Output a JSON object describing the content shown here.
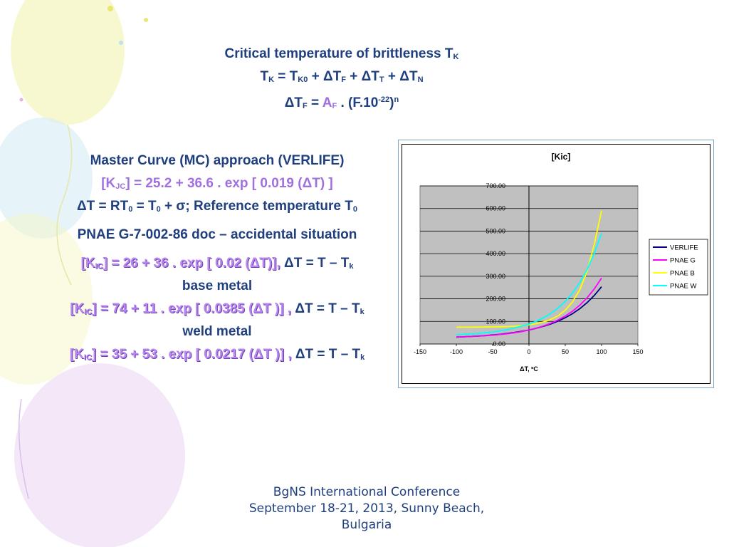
{
  "header": {
    "line1_main": "Critical temperature of brittleness T",
    "line1_sub": "K",
    "eq1": {
      "a": "T",
      "a_sub": "K",
      "b": " = T",
      "b_sub": "K0",
      "c": " + ΔT",
      "c_sub": "F",
      "d": " + ΔT",
      "d_sub": "T",
      "e": " + ΔT",
      "e_sub": "N"
    },
    "eq2": {
      "a": "ΔT",
      "a_sub": "F",
      "b": " = ",
      "c": "A",
      "c_sub": "F",
      "d": " . (F.10",
      "d_sup": "-22",
      "e": ")",
      "e_sup": "n"
    }
  },
  "left": {
    "mc_title": "Master Curve (MC) approach (VERLIFE)",
    "mc_eq": {
      "a": "[K",
      "a_sub": "JC",
      "b": "] = 25.2 + 36.6 . exp [ 0.019 (ΔT) ]"
    },
    "delta_def": {
      "a": "ΔT = RT",
      "a_sub": "0",
      "b": " = T",
      "b_sub": "0",
      "c": " + σ; Reference temperature T",
      "c_sub": "0"
    },
    "pnae_title": "PNAE G-7-002-86 doc – accidental situation",
    "pnae_eq": {
      "a": "[K",
      "a_sub": "IC",
      "b": "] = 26 + 36 . exp [ 0.02 (ΔT)], ",
      "c": "ΔT = T – T",
      "c_sub": "k"
    },
    "base_label": "base metal",
    "base_eq": {
      "a": "[K",
      "a_sub": "IC",
      "b": "] = 74 + 11 . exp [ 0.0385 (ΔT )] , ",
      "c": "ΔT = T – T",
      "c_sub": "k"
    },
    "weld_label": "weld metal",
    "weld_eq": {
      "a": "[K",
      "a_sub": "IC",
      "b": "] = 35 + 53 . exp [ 0.0217 (ΔT )] , ",
      "c": "ΔT = T – T",
      "c_sub": "k"
    }
  },
  "footer": {
    "line1": "BgNS International Conference",
    "line2": "September 18-21, 2013, Sunny Beach,",
    "line3": "Bulgaria"
  },
  "chart_data": {
    "type": "line",
    "title": "[Kic]",
    "xlabel": "ΔT, ºC",
    "ylabel": "",
    "xlim": [
      -150,
      150
    ],
    "ylim": [
      0,
      700
    ],
    "x_ticks": [
      -150,
      -100,
      -50,
      0,
      50,
      100,
      150
    ],
    "x_tick_labels": [
      "-150",
      "-100",
      "-50",
      "0",
      "50",
      "100",
      "150"
    ],
    "y_ticks": [
      0,
      100,
      200,
      300,
      400,
      500,
      600,
      700
    ],
    "y_tick_labels": [
      "0.00",
      "100.00",
      "200.00",
      "300.00",
      "400.00",
      "500.00",
      "600.00",
      "700.00"
    ],
    "grid": true,
    "plot_background": "#c0c0c0",
    "legend_position": "right",
    "x": [
      -100,
      -90,
      -80,
      -70,
      -60,
      -50,
      -40,
      -30,
      -20,
      -10,
      0,
      10,
      20,
      30,
      40,
      50,
      60,
      70,
      80,
      90,
      100
    ],
    "series": [
      {
        "name": "VERLIFE",
        "color": "#000080",
        "values": [
          30.5,
          31.8,
          33.3,
          35.2,
          37.4,
          39.9,
          43.0,
          46.7,
          51.2,
          56.5,
          61.8,
          69.8,
          78.4,
          88.7,
          101.1,
          116.2,
          134.4,
          156.4,
          182.9,
          214.9,
          253.4
        ]
      },
      {
        "name": "PNAE G",
        "color": "#ff00ff",
        "values": [
          30.9,
          32.0,
          33.3,
          34.9,
          36.9,
          39.2,
          42.1,
          45.5,
          49.7,
          54.8,
          62.0,
          70.0,
          79.7,
          91.6,
          106.2,
          123.8,
          145.5,
          172.0,
          204.4,
          244.0,
          292.0
        ]
      },
      {
        "name": "PNAE B",
        "color": "#ffff00",
        "values": [
          74.2,
          74.3,
          74.5,
          74.7,
          75.1,
          75.6,
          76.4,
          77.4,
          78.9,
          81.3,
          85.0,
          90.0,
          97.5,
          108.5,
          125.0,
          149.6,
          186.1,
          240.3,
          321.2,
          441.1,
          590.5
        ]
      },
      {
        "name": "PNAE W",
        "color": "#00ffff",
        "values": [
          41.0,
          42.5,
          44.3,
          46.6,
          49.4,
          53.3,
          57.9,
          63.7,
          70.7,
          79.1,
          88.0,
          100.8,
          116.1,
          135.2,
          159.0,
          188.6,
          225.6,
          271.7,
          329.2,
          401.0,
          490.5
        ]
      }
    ]
  }
}
